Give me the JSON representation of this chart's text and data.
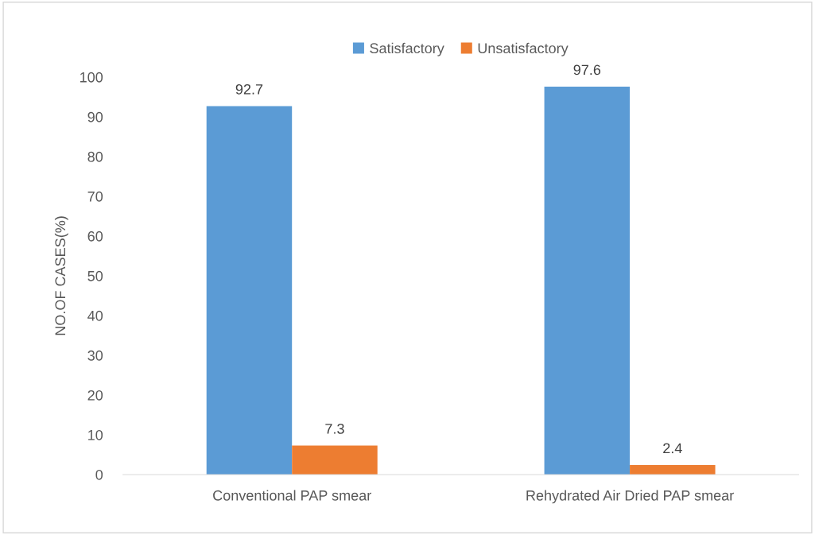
{
  "chart_data": {
    "type": "bar",
    "ylabel": "NO.OF CASES(%)",
    "categories": [
      "Conventional PAP smear",
      "Rehydrated Air Dried PAP smear"
    ],
    "series": [
      {
        "name": "Satisfactory",
        "color": "#5b9bd5",
        "values": [
          92.7,
          97.6
        ]
      },
      {
        "name": "Unsatisfactory",
        "color": "#ed7d31",
        "values": [
          7.3,
          2.4
        ]
      }
    ],
    "ylim": [
      0,
      100
    ],
    "yticks": [
      0,
      10,
      20,
      30,
      40,
      50,
      60,
      70,
      80,
      90,
      100
    ],
    "data_labels": true,
    "grid": false,
    "legend": "top"
  }
}
